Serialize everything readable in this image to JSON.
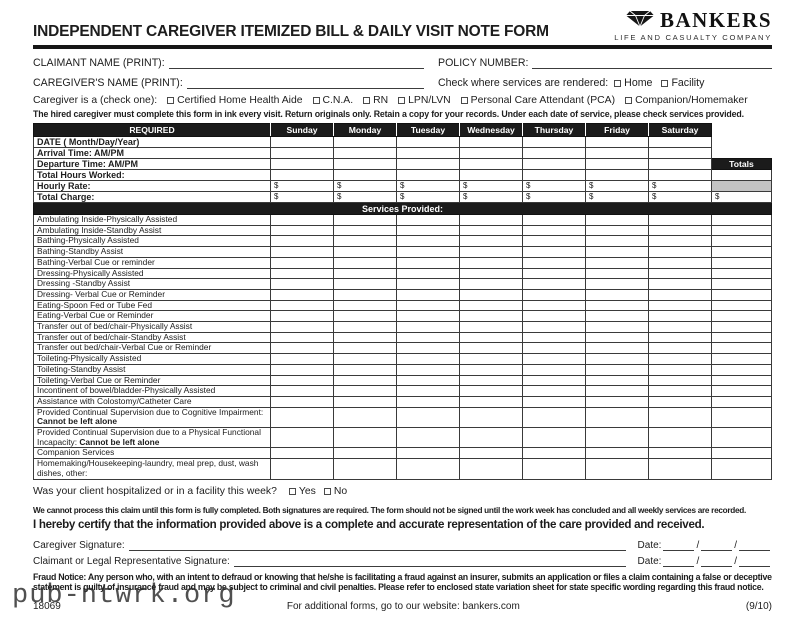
{
  "page": {
    "title": "INDEPENDENT CAREGIVER ITEMIZED BILL & DAILY VISIT NOTE FORM",
    "watermark": "pub-ntwrk.org"
  },
  "logo": {
    "name": "BANKERS",
    "subtitle": "LIFE AND CASUALTY COMPANY",
    "icon": "diamond-gem-icon"
  },
  "fields": {
    "claimant_name_label": "CLAIMANT NAME (PRINT):",
    "policy_number_label": "POLICY NUMBER:",
    "caregiver_name_label": "CAREGIVER'S NAME (PRINT):",
    "services_rendered_label": "Check where services are rendered:",
    "services_rendered_options": [
      "Home",
      "Facility"
    ],
    "caregiver_type_label": "Caregiver is a (check one):",
    "caregiver_type_options": [
      "Certified Home Health Aide",
      "C.N.A.",
      "RN",
      "LPN/LVN",
      "Personal Care Attendant (PCA)",
      "Companion/Homemaker"
    ],
    "instruction": "The hired caregiver must complete this form in ink every visit. Return originals only. Retain a copy for your records. Under each date of service, please check services provided."
  },
  "table": {
    "required_header": "REQUIRED",
    "day_headers": [
      "Sunday",
      "Monday",
      "Tuesday",
      "Wednesday",
      "Thursday",
      "Friday",
      "Saturday"
    ],
    "totals_label": "Totals",
    "currency_symbol": "$",
    "required_rows": [
      {
        "label": "DATE ( Month/Day/Year)",
        "dollar": false,
        "totals": "none"
      },
      {
        "label": "Arrival Time: AM/PM",
        "dollar": false,
        "totals": "none"
      },
      {
        "label": "Departure Time: AM/PM",
        "dollar": false,
        "totals": "label"
      },
      {
        "label": "Total Hours Worked:",
        "dollar": false,
        "totals": "empty"
      },
      {
        "label": "Hourly Rate:",
        "dollar": true,
        "totals": "gray"
      },
      {
        "label": "Total Charge:",
        "dollar": true,
        "totals": "dollar"
      }
    ],
    "services_header": "Services Provided:",
    "service_rows": [
      {
        "text": "Ambulating Inside-Physically Assisted"
      },
      {
        "text": "Ambulating Inside-Standby Assist"
      },
      {
        "text": "Bathing-Physically Assisted"
      },
      {
        "text": "Bathing-Standby Assist"
      },
      {
        "text": "Bathing-Verbal Cue or reminder"
      },
      {
        "text": "Dressing-Physically Assisted"
      },
      {
        "text": "Dressing -Standby Assist"
      },
      {
        "text": "Dressing- Verbal Cue or Reminder"
      },
      {
        "text": "Eating-Spoon Fed or Tube Fed"
      },
      {
        "text": "Eating-Verbal Cue or Reminder"
      },
      {
        "text": "Transfer out of bed/chair-Physically Assist"
      },
      {
        "text": "Transfer out of bed/chair-Standby Assist"
      },
      {
        "text": "Transfer out bed/chair-Verbal Cue or Reminder"
      },
      {
        "text": "Toileting-Physically Assisted"
      },
      {
        "text": "Toileting-Standby Assist"
      },
      {
        "text": "Toileting-Verbal Cue or Reminder"
      },
      {
        "text": "Incontinent of bowel/bladder-Physically Assisted"
      },
      {
        "text": "Assistance with Colostomy/Catheter Care"
      },
      {
        "text": "Provided Continual Supervision due to Cognitive Impairment: ",
        "bold": "Cannot be left alone",
        "tall": true
      },
      {
        "text": "Provided Continual Supervision due to a Physical Functional Incapacity: ",
        "bold": "Cannot be left alone",
        "tall": true
      },
      {
        "text": "Companion Services"
      },
      {
        "text": "Homemaking/Housekeeping-laundry, meal prep, dust, wash dishes, other:",
        "tall": true
      }
    ]
  },
  "bottom": {
    "hospitalized_question": "Was your client hospitalized or in a facility this week?",
    "hospitalized_options": [
      "Yes",
      "No"
    ],
    "process_notice": "We cannot process this claim until this form is fully completed. Both signatures are required. The form should not be signed until the work week has concluded and all weekly services are recorded.",
    "certification": "I hereby certify that the information provided above is a complete and accurate representation of the care provided and received.",
    "caregiver_signature_label": "Caregiver Signature:",
    "claimant_signature_label": "Claimant or Legal Representative Signature:",
    "date_label": "Date:",
    "fraud_notice": "Fraud Notice: Any person who, with an intent to defraud or knowing that he/she is facilitating a fraud against an insurer, submits an application or files a claim containing a false or deceptive statement is guilty of insurance fraud and may be subject to criminal and civil penalties. Please refer to enclosed state variation sheet for state specific wording regarding this fraud notice.",
    "form_number": "18069",
    "website_note": "For additional forms, go to our website: bankers.com",
    "revision": "(9/10)"
  },
  "colors": {
    "bar": "#1b1b1b",
    "gray_cell": "#c3c3c3",
    "text": "#1d1d1d"
  }
}
